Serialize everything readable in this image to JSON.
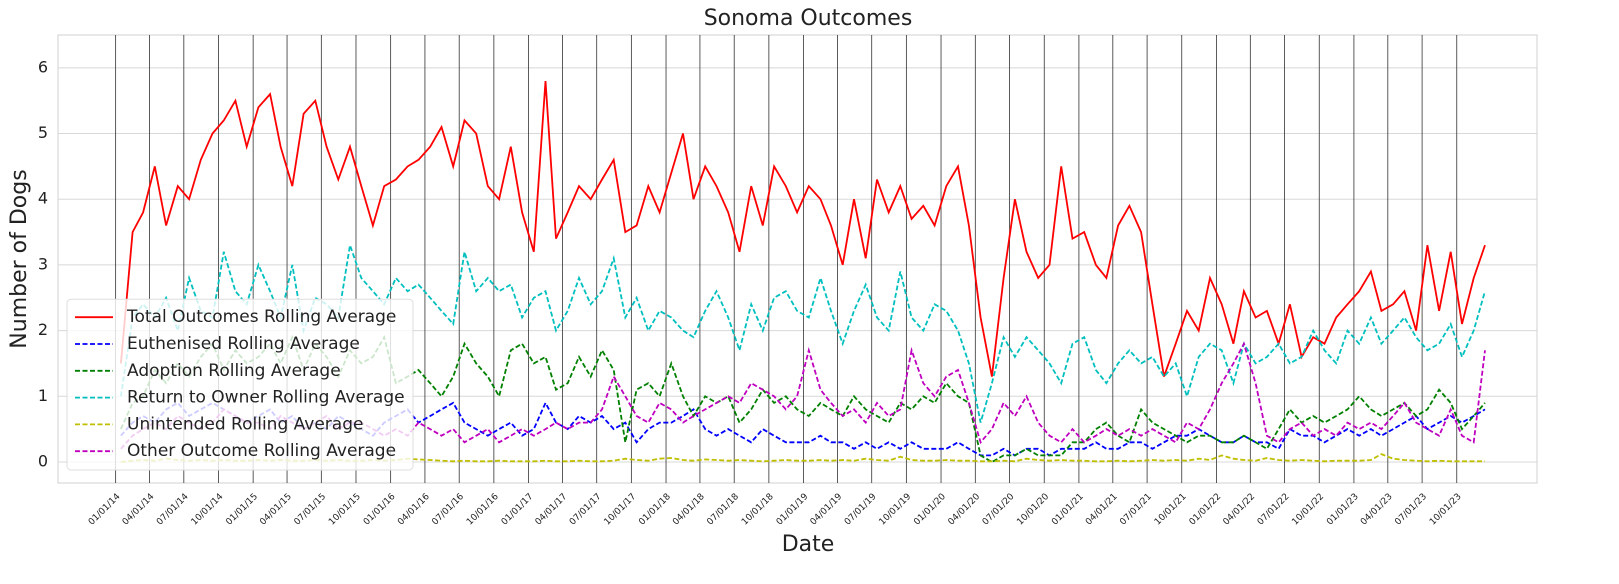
{
  "chart_data": {
    "type": "line",
    "title": "Sonoma Outcomes",
    "xlabel": "Date",
    "ylabel": "Number of Dogs",
    "x": [
      "01/15/14",
      "02/15/14",
      "03/15/14",
      "04/15/14",
      "05/15/14",
      "06/15/14",
      "07/15/14",
      "08/15/14",
      "09/15/14",
      "10/15/14",
      "11/15/14",
      "12/15/14",
      "01/15/15",
      "02/15/15",
      "03/15/15",
      "04/15/15",
      "05/15/15",
      "06/15/15",
      "07/15/15",
      "08/15/15",
      "09/15/15",
      "10/15/15",
      "11/15/15",
      "12/15/15",
      "01/15/16",
      "02/15/16",
      "03/15/16",
      "04/15/16",
      "05/15/16",
      "06/15/16",
      "07/15/16",
      "08/15/16",
      "09/15/16",
      "10/15/16",
      "11/15/16",
      "12/15/16",
      "01/15/17",
      "02/15/17",
      "03/15/17",
      "04/15/17",
      "05/15/17",
      "06/15/17",
      "07/15/17",
      "08/15/17",
      "09/15/17",
      "10/15/17",
      "11/15/17",
      "12/15/17",
      "01/15/18",
      "02/15/18",
      "03/15/18",
      "04/15/18",
      "05/15/18",
      "06/15/18",
      "07/15/18",
      "08/15/18",
      "09/15/18",
      "10/15/18",
      "11/15/18",
      "12/15/18",
      "01/15/19",
      "02/15/19",
      "03/15/19",
      "04/15/19",
      "05/15/19",
      "06/15/19",
      "07/15/19",
      "08/15/19",
      "09/15/19",
      "10/15/19",
      "11/15/19",
      "12/15/19",
      "01/15/20",
      "02/15/20",
      "03/15/20",
      "04/15/20",
      "05/15/20",
      "06/15/20",
      "07/15/20",
      "08/15/20",
      "09/15/20",
      "10/15/20",
      "11/15/20",
      "12/15/20",
      "01/15/21",
      "02/15/21",
      "03/15/21",
      "04/15/21",
      "05/15/21",
      "06/15/21",
      "07/15/21",
      "08/15/21",
      "09/15/21",
      "10/15/21",
      "11/15/21",
      "12/15/21",
      "01/15/22",
      "02/15/22",
      "03/15/22",
      "04/15/22",
      "05/15/22",
      "06/15/22",
      "07/15/22",
      "08/15/22",
      "09/15/22",
      "10/15/22",
      "11/15/22",
      "12/15/22",
      "01/15/23",
      "02/15/23",
      "03/15/23",
      "04/15/23",
      "05/15/23",
      "06/15/23",
      "07/15/23",
      "08/15/23",
      "09/15/23",
      "10/15/23",
      "11/15/23",
      "12/15/23"
    ],
    "series": [
      {
        "name": "Total Outcomes Rolling Average",
        "color": "#ff0000",
        "linestyle": "solid",
        "values": [
          1.5,
          3.5,
          3.8,
          4.5,
          3.6,
          4.2,
          4.0,
          4.6,
          5.0,
          5.2,
          5.5,
          4.8,
          5.4,
          5.6,
          4.8,
          4.2,
          5.3,
          5.5,
          4.8,
          4.3,
          4.8,
          4.2,
          3.6,
          4.2,
          4.3,
          4.5,
          4.6,
          4.8,
          5.1,
          4.5,
          5.2,
          5.0,
          4.2,
          4.0,
          4.8,
          3.8,
          3.2,
          5.8,
          3.4,
          3.8,
          4.2,
          4.0,
          4.3,
          4.6,
          3.5,
          3.6,
          4.2,
          3.8,
          4.4,
          5.0,
          4.0,
          4.5,
          4.2,
          3.8,
          3.2,
          4.2,
          3.6,
          4.5,
          4.2,
          3.8,
          4.2,
          4.0,
          3.6,
          3.0,
          4.0,
          3.1,
          4.3,
          3.8,
          4.2,
          3.7,
          3.9,
          3.6,
          4.2,
          4.5,
          3.6,
          2.2,
          1.3,
          2.8,
          4.0,
          3.2,
          2.8,
          3.0,
          4.5,
          3.4,
          3.5,
          3.0,
          2.8,
          3.6,
          3.9,
          3.5,
          2.4,
          1.3,
          1.8,
          2.3,
          2.0,
          2.8,
          2.4,
          1.8,
          2.6,
          2.2,
          2.3,
          1.8,
          2.4,
          1.6,
          1.9,
          1.8,
          2.2,
          2.4,
          2.6,
          2.9,
          2.3,
          2.4,
          2.6,
          2.0,
          3.3,
          2.3,
          3.2,
          2.1,
          2.8,
          3.3
        ]
      },
      {
        "name": "Euthenised Rolling Average",
        "color": "#0000ff",
        "linestyle": "dashed",
        "values": [
          0.4,
          0.6,
          0.7,
          0.6,
          0.8,
          0.9,
          0.7,
          0.8,
          0.9,
          0.8,
          0.7,
          0.6,
          0.7,
          0.8,
          0.6,
          0.7,
          0.5,
          0.6,
          0.5,
          0.7,
          0.6,
          0.5,
          0.4,
          0.6,
          0.7,
          0.8,
          0.6,
          0.7,
          0.8,
          0.9,
          0.6,
          0.5,
          0.4,
          0.5,
          0.6,
          0.4,
          0.5,
          0.9,
          0.6,
          0.5,
          0.7,
          0.6,
          0.7,
          0.5,
          0.6,
          0.3,
          0.5,
          0.6,
          0.6,
          0.7,
          0.8,
          0.5,
          0.4,
          0.5,
          0.4,
          0.3,
          0.5,
          0.4,
          0.3,
          0.3,
          0.3,
          0.4,
          0.3,
          0.3,
          0.2,
          0.3,
          0.2,
          0.3,
          0.2,
          0.3,
          0.2,
          0.2,
          0.2,
          0.3,
          0.2,
          0.1,
          0.1,
          0.2,
          0.1,
          0.2,
          0.2,
          0.1,
          0.2,
          0.2,
          0.2,
          0.3,
          0.2,
          0.2,
          0.3,
          0.3,
          0.2,
          0.3,
          0.4,
          0.4,
          0.5,
          0.4,
          0.3,
          0.3,
          0.4,
          0.3,
          0.3,
          0.2,
          0.5,
          0.4,
          0.4,
          0.3,
          0.4,
          0.5,
          0.4,
          0.5,
          0.4,
          0.5,
          0.6,
          0.7,
          0.5,
          0.6,
          0.7,
          0.6,
          0.7,
          0.8
        ]
      },
      {
        "name": "Adoption Rolling Average",
        "color": "#008000",
        "linestyle": "dashed",
        "values": [
          0.5,
          0.9,
          1.0,
          1.4,
          1.2,
          1.5,
          1.3,
          1.6,
          1.8,
          1.4,
          1.7,
          1.5,
          1.6,
          1.8,
          1.5,
          1.9,
          1.4,
          1.8,
          1.6,
          1.3,
          1.7,
          1.5,
          1.6,
          1.9,
          1.2,
          1.3,
          1.4,
          1.2,
          1.0,
          1.3,
          1.8,
          1.5,
          1.3,
          1.0,
          1.7,
          1.8,
          1.5,
          1.6,
          1.1,
          1.2,
          1.6,
          1.3,
          1.7,
          1.4,
          0.3,
          1.1,
          1.2,
          1.0,
          1.5,
          1.0,
          0.7,
          1.0,
          0.9,
          1.0,
          0.6,
          0.8,
          1.1,
          0.9,
          1.0,
          0.8,
          0.7,
          0.9,
          0.8,
          0.7,
          1.0,
          0.8,
          0.7,
          0.6,
          0.9,
          0.8,
          1.0,
          0.9,
          1.2,
          1.0,
          0.9,
          0.1,
          0.0,
          0.1,
          0.1,
          0.2,
          0.1,
          0.1,
          0.1,
          0.3,
          0.3,
          0.5,
          0.6,
          0.4,
          0.3,
          0.8,
          0.6,
          0.5,
          0.4,
          0.3,
          0.4,
          0.4,
          0.3,
          0.3,
          0.4,
          0.3,
          0.2,
          0.5,
          0.8,
          0.6,
          0.7,
          0.6,
          0.7,
          0.8,
          1.0,
          0.8,
          0.7,
          0.8,
          0.9,
          0.7,
          0.8,
          1.1,
          0.9,
          0.5,
          0.7,
          0.9
        ]
      },
      {
        "name": "Return to Owner Rolling Average",
        "color": "#00bfbf",
        "linestyle": "dashed",
        "values": [
          1.0,
          2.2,
          2.4,
          2.2,
          2.5,
          2.0,
          2.8,
          2.3,
          2.2,
          3.2,
          2.6,
          2.4,
          3.0,
          2.6,
          2.2,
          3.0,
          2.0,
          2.5,
          2.4,
          2.2,
          3.3,
          2.8,
          2.6,
          2.4,
          2.8,
          2.6,
          2.7,
          2.5,
          2.3,
          2.1,
          3.2,
          2.6,
          2.8,
          2.6,
          2.7,
          2.2,
          2.5,
          2.6,
          2.0,
          2.3,
          2.8,
          2.4,
          2.6,
          3.1,
          2.2,
          2.5,
          2.0,
          2.3,
          2.2,
          2.0,
          1.9,
          2.3,
          2.6,
          2.2,
          1.7,
          2.4,
          2.0,
          2.5,
          2.6,
          2.3,
          2.2,
          2.8,
          2.3,
          1.8,
          2.3,
          2.7,
          2.2,
          2.0,
          2.9,
          2.2,
          2.0,
          2.4,
          2.3,
          2.0,
          1.5,
          0.6,
          1.2,
          1.9,
          1.6,
          1.9,
          1.7,
          1.5,
          1.2,
          1.8,
          1.9,
          1.4,
          1.2,
          1.5,
          1.7,
          1.5,
          1.6,
          1.3,
          1.5,
          1.0,
          1.6,
          1.8,
          1.7,
          1.2,
          1.8,
          1.5,
          1.6,
          1.8,
          1.5,
          1.6,
          2.0,
          1.7,
          1.5,
          2.0,
          1.8,
          2.2,
          1.8,
          2.0,
          2.2,
          1.9,
          1.7,
          1.8,
          2.1,
          1.6,
          2.0,
          2.6
        ]
      },
      {
        "name": "Unintended Rolling Average",
        "color": "#bfbf00",
        "linestyle": "dashed",
        "values": [
          0.0,
          0.02,
          0.03,
          0.02,
          0.05,
          0.03,
          0.02,
          0.03,
          0.02,
          0.03,
          0.02,
          0.02,
          0.03,
          0.02,
          0.03,
          0.02,
          0.02,
          0.03,
          0.02,
          0.03,
          0.02,
          0.02,
          0.03,
          0.02,
          0.03,
          0.05,
          0.04,
          0.03,
          0.02,
          0.01,
          0.02,
          0.01,
          0.01,
          0.02,
          0.01,
          0.01,
          0.01,
          0.02,
          0.01,
          0.01,
          0.02,
          0.01,
          0.01,
          0.02,
          0.05,
          0.03,
          0.02,
          0.05,
          0.06,
          0.03,
          0.02,
          0.04,
          0.03,
          0.02,
          0.03,
          0.02,
          0.01,
          0.02,
          0.03,
          0.02,
          0.02,
          0.03,
          0.02,
          0.03,
          0.02,
          0.05,
          0.03,
          0.02,
          0.08,
          0.03,
          0.02,
          0.02,
          0.03,
          0.02,
          0.02,
          0.01,
          0.01,
          0.02,
          0.01,
          0.05,
          0.03,
          0.02,
          0.03,
          0.02,
          0.02,
          0.01,
          0.01,
          0.02,
          0.01,
          0.02,
          0.03,
          0.02,
          0.03,
          0.02,
          0.05,
          0.03,
          0.1,
          0.05,
          0.03,
          0.02,
          0.06,
          0.03,
          0.02,
          0.03,
          0.02,
          0.01,
          0.02,
          0.02,
          0.02,
          0.03,
          0.12,
          0.05,
          0.03,
          0.02,
          0.01,
          0.02,
          0.01,
          0.01,
          0.01,
          0.01
        ]
      },
      {
        "name": "Other Outcome Rolling Average",
        "color": "#bf00bf",
        "linestyle": "dashed",
        "values": [
          0.2,
          0.4,
          0.5,
          0.6,
          0.5,
          0.7,
          0.6,
          0.5,
          0.6,
          0.8,
          0.7,
          0.6,
          0.6,
          0.5,
          0.7,
          0.6,
          0.5,
          0.6,
          0.7,
          0.5,
          0.6,
          0.6,
          0.5,
          0.4,
          0.5,
          0.4,
          0.6,
          0.5,
          0.4,
          0.5,
          0.3,
          0.4,
          0.5,
          0.3,
          0.4,
          0.5,
          0.4,
          0.5,
          0.6,
          0.5,
          0.6,
          0.6,
          0.8,
          1.3,
          1.0,
          0.7,
          0.6,
          0.9,
          0.8,
          0.6,
          0.7,
          0.8,
          0.9,
          1.0,
          0.9,
          1.2,
          1.1,
          1.0,
          0.8,
          1.0,
          1.7,
          1.1,
          0.9,
          0.7,
          0.8,
          0.6,
          0.9,
          0.7,
          0.8,
          1.7,
          1.2,
          1.0,
          1.3,
          1.4,
          0.9,
          0.3,
          0.5,
          0.9,
          0.7,
          1.0,
          0.6,
          0.4,
          0.3,
          0.5,
          0.3,
          0.4,
          0.5,
          0.4,
          0.5,
          0.4,
          0.5,
          0.4,
          0.3,
          0.6,
          0.5,
          0.8,
          1.2,
          1.5,
          1.8,
          1.2,
          0.4,
          0.3,
          0.5,
          0.6,
          0.4,
          0.5,
          0.4,
          0.6,
          0.5,
          0.6,
          0.5,
          0.7,
          0.9,
          0.6,
          0.5,
          0.4,
          0.8,
          0.4,
          0.3,
          1.7
        ]
      }
    ],
    "xlim": [
      "08/01/13",
      "05/01/24"
    ],
    "xticks": [
      "01/01/14",
      "04/01/14",
      "07/01/14",
      "10/01/14",
      "01/01/15",
      "04/01/15",
      "07/01/15",
      "10/01/15",
      "01/01/16",
      "04/01/16",
      "07/01/16",
      "10/01/16",
      "01/01/17",
      "04/01/17",
      "07/01/17",
      "10/01/17",
      "01/01/18",
      "04/01/18",
      "07/01/18",
      "10/01/18",
      "01/01/19",
      "04/01/19",
      "07/01/19",
      "10/01/19",
      "01/01/20",
      "04/01/20",
      "07/01/20",
      "10/01/20",
      "01/01/21",
      "04/01/21",
      "07/01/21",
      "10/01/21",
      "01/01/22",
      "04/01/22",
      "07/01/22",
      "10/01/22",
      "01/01/23",
      "04/01/23",
      "07/01/23",
      "10/01/23"
    ],
    "xtick_line_color": "#333333",
    "ylim": [
      -0.32,
      6.5
    ],
    "yticks": [
      0,
      1,
      2,
      3,
      4,
      5,
      6
    ],
    "grid": true,
    "legend": "lower left"
  }
}
